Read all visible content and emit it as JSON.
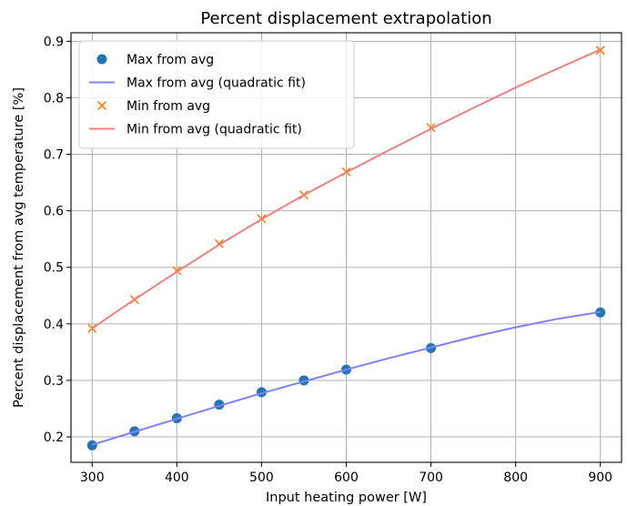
{
  "chart_data": {
    "type": "line",
    "title": "Percent displacement extrapolation",
    "xlabel": "Input heating power [W]",
    "ylabel": "Percent displacement from avg temperature [%]",
    "xlim": [
      275,
      925
    ],
    "ylim": [
      0.155,
      0.915
    ],
    "xticks": [
      300,
      400,
      500,
      600,
      700,
      800,
      900
    ],
    "yticks": [
      0.2,
      0.3,
      0.4,
      0.5,
      0.6,
      0.7,
      0.8,
      0.9
    ],
    "xtick_labels": [
      "300",
      "400",
      "500",
      "600",
      "700",
      "800",
      "900"
    ],
    "ytick_labels": [
      "0.2",
      "0.3",
      "0.4",
      "0.5",
      "0.6",
      "0.7",
      "0.8",
      "0.9"
    ],
    "grid": true,
    "legend_position": "top-left",
    "series": [
      {
        "name": "Max from avg",
        "kind": "marker-circle",
        "color": "#1f77b4",
        "x": [
          300,
          350,
          400,
          450,
          500,
          550,
          600,
          700,
          900
        ],
        "y": [
          0.185,
          0.21,
          0.233,
          0.257,
          0.279,
          0.3,
          0.319,
          0.357,
          0.42
        ]
      },
      {
        "name": "Max from avg (quadratic fit)",
        "kind": "line",
        "color": "#8080ff",
        "x": [
          300,
          350,
          400,
          450,
          500,
          550,
          600,
          650,
          700,
          750,
          800,
          850,
          900
        ],
        "y": [
          0.186,
          0.209,
          0.232,
          0.255,
          0.277,
          0.298,
          0.319,
          0.339,
          0.358,
          0.377,
          0.394,
          0.409,
          0.421
        ]
      },
      {
        "name": "Min from avg",
        "kind": "marker-x",
        "color": "#ff7f0e",
        "x": [
          300,
          350,
          400,
          450,
          500,
          550,
          600,
          700,
          900
        ],
        "y": [
          0.392,
          0.443,
          0.494,
          0.542,
          0.586,
          0.628,
          0.669,
          0.747,
          0.884
        ]
      },
      {
        "name": "Min from avg (quadratic fit)",
        "kind": "line",
        "color": "#f08080",
        "x": [
          300,
          350,
          400,
          450,
          500,
          550,
          600,
          650,
          700,
          750,
          800,
          850,
          900
        ],
        "y": [
          0.392,
          0.443,
          0.492,
          0.54,
          0.585,
          0.628,
          0.668,
          0.707,
          0.745,
          0.782,
          0.818,
          0.852,
          0.885
        ]
      }
    ]
  }
}
